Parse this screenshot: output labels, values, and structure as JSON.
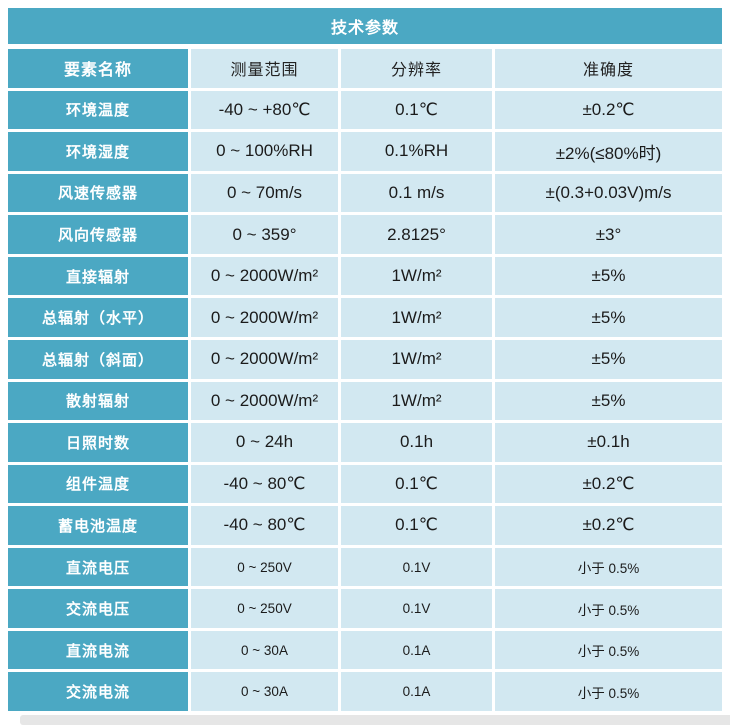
{
  "title": "技术参数",
  "header": {
    "name": "要素名称",
    "range": "测量范围",
    "resolution": "分辨率",
    "accuracy": "准确度"
  },
  "rows": [
    {
      "name": "环境温度",
      "range": "-40 ~ +80℃",
      "resolution": "0.1℃",
      "accuracy": "±0.2℃"
    },
    {
      "name": "环境湿度",
      "range": "0 ~ 100%RH",
      "resolution": "0.1%RH",
      "accuracy": "±2%(≤80%时)"
    },
    {
      "name": "风速传感器",
      "range": "0 ~ 70m/s",
      "resolution": "0.1 m/s",
      "accuracy": "±(0.3+0.03V)m/s"
    },
    {
      "name": "风向传感器",
      "range": "0 ~ 359°",
      "resolution": "2.8125°",
      "accuracy": "±3°"
    },
    {
      "name": "直接辐射",
      "range": "0 ~ 2000W/m²",
      "resolution": "1W/m²",
      "accuracy": "±5%"
    },
    {
      "name": "总辐射（水平）",
      "range": "0 ~ 2000W/m²",
      "resolution": "1W/m²",
      "accuracy": "±5%"
    },
    {
      "name": "总辐射（斜面）",
      "range": "0 ~ 2000W/m²",
      "resolution": "1W/m²",
      "accuracy": "±5%"
    },
    {
      "name": "散射辐射",
      "range": "0 ~ 2000W/m²",
      "resolution": "1W/m²",
      "accuracy": "±5%"
    },
    {
      "name": "日照时数",
      "range": "0 ~ 24h",
      "resolution": "0.1h",
      "accuracy": "±0.1h"
    },
    {
      "name": "组件温度",
      "range": "-40 ~ 80℃",
      "resolution": "0.1℃",
      "accuracy": "±0.2℃"
    },
    {
      "name": "蓄电池温度",
      "range": "-40 ~ 80℃",
      "resolution": "0.1℃",
      "accuracy": "±0.2℃"
    },
    {
      "name": "直流电压",
      "range": "0 ~ 250V",
      "resolution": "0.1V",
      "accuracy": "小于 0.5%"
    },
    {
      "name": "交流电压",
      "range": "0 ~ 250V",
      "resolution": "0.1V",
      "accuracy": "小于 0.5%"
    },
    {
      "name": "直流电流",
      "range": "0 ~ 30A",
      "resolution": "0.1A",
      "accuracy": "小于 0.5%"
    },
    {
      "name": "交流电流",
      "range": "0 ~ 30A",
      "resolution": "0.1A",
      "accuracy": "小于 0.5%"
    }
  ],
  "colors": {
    "teal": "#4BA8C3",
    "cell_blue": "#D2E8F1",
    "text_dark": "#1B1B1B",
    "footer_gray": "#E6E6E6"
  }
}
